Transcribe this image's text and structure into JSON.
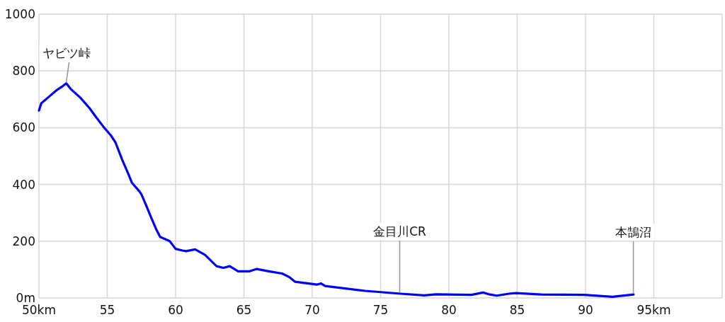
{
  "chart_data": {
    "type": "line",
    "x": [
      50.0,
      50.17,
      50.78,
      51.29,
      51.67,
      52.0,
      52.33,
      53.02,
      53.7,
      54.2,
      54.74,
      55.26,
      55.6,
      56.1,
      56.55,
      56.8,
      57.33,
      57.5,
      57.84,
      58.19,
      58.6,
      58.87,
      59.57,
      60.0,
      60.5,
      60.77,
      61.43,
      62.15,
      63.0,
      63.5,
      63.96,
      64.57,
      65.42,
      65.94,
      66.82,
      67.8,
      68.3,
      68.75,
      69.55,
      70.35,
      70.65,
      70.94,
      72.32,
      73.87,
      76.46,
      78.2,
      79.05,
      81.64,
      82.5,
      83.02,
      83.5,
      84.4,
      84.9,
      86.8,
      89.9,
      91.97,
      93.52
    ],
    "series": [
      {
        "color": "#0000ff",
        "values": [
          660,
          686,
          711,
          732,
          744,
          756,
          736,
          706,
          669,
          636,
          602,
          573,
          548,
          486,
          436,
          406,
          377,
          365,
          327,
          286,
          240,
          215,
          200,
          173,
          167,
          165,
          171,
          152,
          112,
          106,
          112,
          94,
          94,
          102,
          94,
          86,
          74,
          57,
          52,
          47,
          51,
          42,
          34,
          25,
          15,
          9,
          13,
          11,
          19,
          12,
          8,
          15,
          17,
          12,
          11,
          4,
          12
        ]
      }
    ],
    "xlim": [
      50,
      100
    ],
    "ylim": [
      0,
      1000
    ],
    "xticks": [
      {
        "value": 50,
        "label": "50km"
      },
      55,
      60,
      65,
      70,
      75,
      80,
      85,
      90,
      {
        "value": 95,
        "label": "95km"
      },
      {
        "value": 100,
        "label": null
      }
    ],
    "yticks": [
      {
        "value": 0,
        "label": "0m"
      },
      200,
      400,
      600,
      800,
      1000
    ],
    "grid": true,
    "annotations": [
      {
        "text": "ヤビツ峠",
        "x": 52,
        "y": 756
      },
      {
        "text": "金目川CR",
        "x": 76.4,
        "y": 15
      },
      {
        "text": "本鵠沼",
        "x": 93.5,
        "y": 12
      }
    ]
  }
}
